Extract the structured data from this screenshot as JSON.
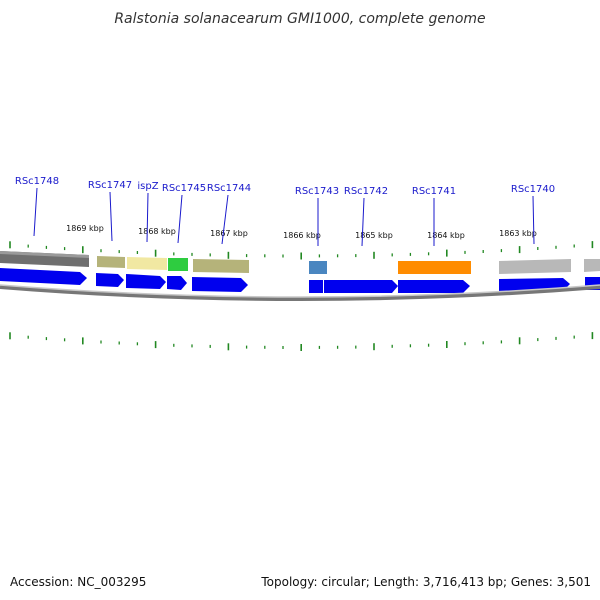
{
  "title": "Ralstonia solanacearum GMI1000, complete genome",
  "footer": {
    "accession": "Accession: NC_003295",
    "summary": "Topology: circular; Length: 3,716,413 bp; Genes: 3,501"
  },
  "colors": {
    "forward_cds": "#0000ee",
    "tick": "#228822",
    "backbone": "#888888",
    "label": "#1a1acc"
  },
  "kbp_labels": [
    "1869 kbp",
    "1868 kbp",
    "1867 kbp",
    "1866 kbp",
    "1865 kbp",
    "1864 kbp",
    "1863 kbp"
  ],
  "gene_labels": [
    "RSc1748",
    "RSc1747",
    "ispZ",
    "RSc1745",
    "RSc1744",
    "RSc1743",
    "RSc1742",
    "RSc1741",
    "RSc1740"
  ],
  "cog_colors": [
    "#6f6f6f",
    "#b5b37a",
    "#f1e8a2",
    "#2ecc40",
    "#b5b37a",
    "#4a86c0",
    "#ff8c00",
    "#b8b8b8",
    "#b8b8b8"
  ]
}
